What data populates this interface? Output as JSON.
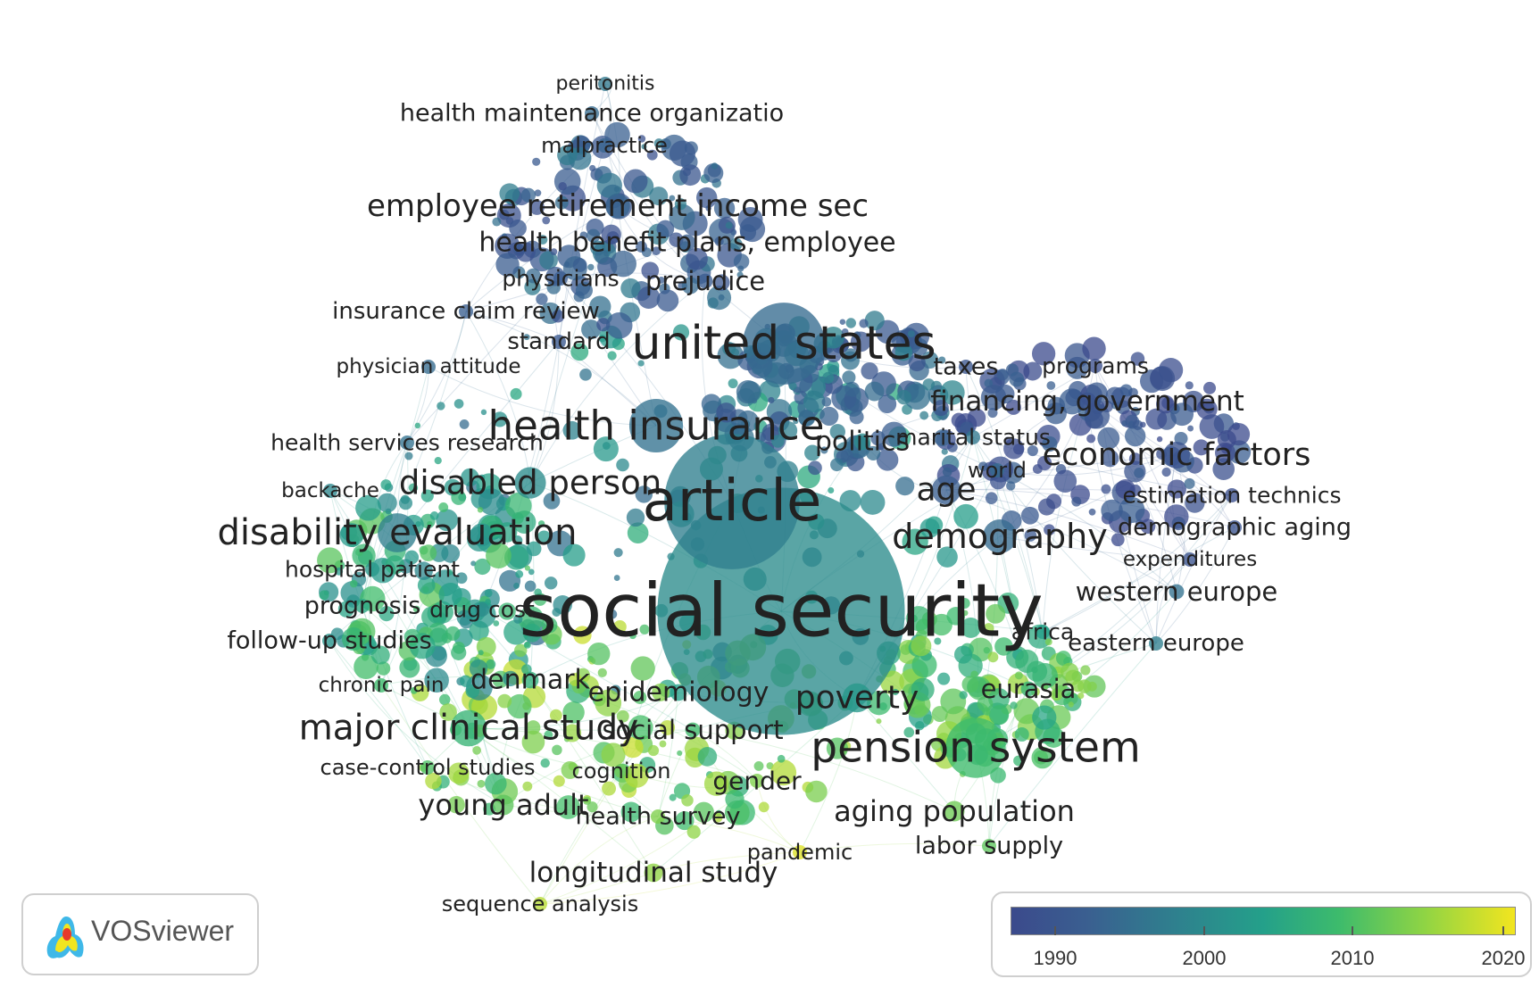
{
  "app": {
    "name": "VOSviewer"
  },
  "colors": {
    "year_low": "#3b4a8c",
    "year_mid": "#24a08a",
    "year_high": "#f2e51f"
  },
  "legend": {
    "ticks": [
      "1990",
      "2000",
      "2010",
      "2020"
    ]
  },
  "keywords": [
    {
      "label": "peritonitis",
      "weight": 1,
      "year": 2001
    },
    {
      "label": "health maintenance organizatio",
      "weight": 1.6,
      "year": 1999
    },
    {
      "label": "malpractice",
      "weight": 1.3,
      "year": 1998
    },
    {
      "label": "employee retirement income sec",
      "weight": 2.3,
      "year": 1998
    },
    {
      "label": "health benefit plans, employee",
      "weight": 1.9,
      "year": 1997
    },
    {
      "label": "physicians",
      "weight": 1.4,
      "year": 1996
    },
    {
      "label": "prejudice",
      "weight": 1.8,
      "year": 1996
    },
    {
      "label": "insurance claim review",
      "weight": 1.5,
      "year": 1997
    },
    {
      "label": "standard",
      "weight": 1.5,
      "year": 1995
    },
    {
      "label": "united states",
      "weight": 4.2,
      "year": 1999
    },
    {
      "label": "physician attitude",
      "weight": 1.1,
      "year": 1999
    },
    {
      "label": "taxes",
      "weight": 1.6,
      "year": 1994
    },
    {
      "label": "programs",
      "weight": 1.4,
      "year": 1992
    },
    {
      "label": "financing, government",
      "weight": 2.0,
      "year": 1993
    },
    {
      "label": "health services research",
      "weight": 1.4,
      "year": 2000
    },
    {
      "label": "health insurance",
      "weight": 3.4,
      "year": 2000
    },
    {
      "label": "politics",
      "weight": 1.9,
      "year": 2004
    },
    {
      "label": "marital status",
      "weight": 1.4,
      "year": 2001
    },
    {
      "label": "economic factors",
      "weight": 2.4,
      "year": 1993
    },
    {
      "label": "world",
      "weight": 1.3,
      "year": 1999
    },
    {
      "label": "backache",
      "weight": 1.1,
      "year": 2003
    },
    {
      "label": "disabled person",
      "weight": 2.6,
      "year": 2004
    },
    {
      "label": "article",
      "weight": 5.4,
      "year": 2002
    },
    {
      "label": "age",
      "weight": 2.5,
      "year": 1997
    },
    {
      "label": "estimation technics",
      "weight": 1.4,
      "year": 1992
    },
    {
      "label": "disability evaluation",
      "weight": 2.9,
      "year": 2002
    },
    {
      "label": "demography",
      "weight": 2.7,
      "year": 1999
    },
    {
      "label": "demographic aging",
      "weight": 1.6,
      "year": 1993
    },
    {
      "label": "hospital patient",
      "weight": 1.4,
      "year": 2006
    },
    {
      "label": "expenditures",
      "weight": 1.1,
      "year": 1993
    },
    {
      "label": "social security",
      "weight": 7.3,
      "year": 2004
    },
    {
      "label": "prognosis",
      "weight": 1.6,
      "year": 2008
    },
    {
      "label": "drug cost",
      "weight": 1.4,
      "year": 2004
    },
    {
      "label": "western europe",
      "weight": 1.8,
      "year": 2000
    },
    {
      "label": "follow-up studies",
      "weight": 1.6,
      "year": 2005
    },
    {
      "label": "africa",
      "weight": 1.4,
      "year": 2007
    },
    {
      "label": "eastern europe",
      "weight": 1.5,
      "year": 2002
    },
    {
      "label": "chronic pain",
      "weight": 1.1,
      "year": 2011
    },
    {
      "label": "denmark",
      "weight": 1.9,
      "year": 2009
    },
    {
      "label": "epidemiology",
      "weight": 1.9,
      "year": 2007
    },
    {
      "label": "poverty",
      "weight": 2.5,
      "year": 2006
    },
    {
      "label": "eurasia",
      "weight": 1.8,
      "year": 2010
    },
    {
      "label": "major clinical study",
      "weight": 2.8,
      "year": 2010
    },
    {
      "label": "social support",
      "weight": 1.8,
      "year": 2011
    },
    {
      "label": "pension system",
      "weight": 3.6,
      "year": 2011
    },
    {
      "label": "case-control studies",
      "weight": 1.3,
      "year": 2012
    },
    {
      "label": "cognition",
      "weight": 1.3,
      "year": 2014
    },
    {
      "label": "gender",
      "weight": 1.7,
      "year": 2015
    },
    {
      "label": "young adult",
      "weight": 2.1,
      "year": 2013
    },
    {
      "label": "aging population",
      "weight": 2.1,
      "year": 2014
    },
    {
      "label": "health survey",
      "weight": 1.6,
      "year": 2015
    },
    {
      "label": "labor supply",
      "weight": 1.6,
      "year": 2013
    },
    {
      "label": "pandemic",
      "weight": 1.3,
      "year": 2020
    },
    {
      "label": "longitudinal study",
      "weight": 2.0,
      "year": 2016
    },
    {
      "label": "sequence analysis",
      "weight": 1.2,
      "year": 2018
    }
  ]
}
